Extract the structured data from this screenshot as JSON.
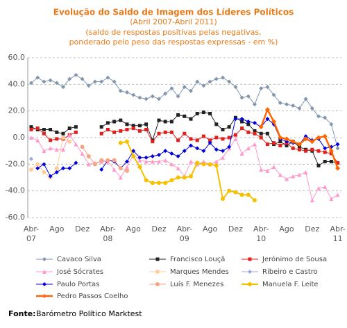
{
  "chart_data": {
    "type": "line",
    "title": "Evolução do Saldo  de Imagem dos Líderes Políticos",
    "subtitle": [
      "(Abril 2007-Abril 2011)",
      "(saldo de respostas positivas pelas negativas,",
      "ponderado pelo peso das respostas expressas - em %)"
    ],
    "categories": [
      "Abr-07",
      null,
      null,
      null,
      "Ago",
      null,
      null,
      null,
      "Dez",
      null,
      null,
      null,
      "Abr-08",
      null,
      null,
      null,
      "Ago",
      null,
      null,
      null,
      "Dez",
      null,
      null,
      null,
      "Abr-09",
      null,
      null,
      null,
      "Ago",
      null,
      null,
      null,
      "Dez",
      null,
      null,
      null,
      "Abr-10",
      null,
      null,
      null,
      "Ago",
      null,
      null,
      null,
      "Dez",
      null,
      null,
      null,
      "Abr-11"
    ],
    "ylim": [
      -60,
      60
    ],
    "yticks": [
      {
        "value": -60,
        "label": "-60.0"
      },
      {
        "value": -40,
        "label": "-40.0"
      },
      {
        "value": -20,
        "label": "-20.0"
      },
      {
        "value": 0,
        "label": "0.0"
      },
      {
        "value": 20,
        "label": "20.0"
      },
      {
        "value": 40,
        "label": "40.0"
      },
      {
        "value": 60,
        "label": "60.0"
      }
    ],
    "grid": true,
    "series": [
      {
        "name": "Cavaco Silva",
        "color": "#8196ad",
        "marker": "diamond",
        "line_width": 1,
        "values": [
          41,
          45,
          42,
          43,
          41,
          38,
          44,
          47,
          44,
          39,
          42,
          42,
          45,
          42,
          35,
          34,
          32,
          30,
          29,
          31,
          29,
          33,
          37,
          31,
          38,
          35,
          42,
          39,
          42,
          44,
          45,
          42,
          38,
          30,
          31,
          25,
          37,
          38,
          32,
          26,
          25,
          24,
          22,
          29,
          22,
          16,
          15,
          10,
          -8
        ]
      },
      {
        "name": "Francisco Louçã",
        "color": "#222222",
        "marker": "square",
        "line_width": 1,
        "values": [
          8,
          6,
          6,
          6,
          4,
          3,
          7,
          8,
          null,
          null,
          null,
          8,
          11,
          12,
          13,
          10,
          9,
          9,
          10,
          -2,
          13,
          12,
          12,
          17,
          16,
          14,
          18,
          19,
          18,
          10,
          6,
          8,
          15,
          12,
          10,
          5,
          3,
          3,
          -5,
          -3,
          -6,
          -3,
          -7,
          -9,
          -10,
          -21,
          -18,
          -18,
          -19
        ]
      },
      {
        "name": "Jerónimo de Sousa",
        "color": "#e0201c",
        "marker": "square",
        "line_width": 1,
        "values": [
          6,
          7,
          3,
          -2,
          -1,
          -1,
          2,
          4,
          null,
          null,
          null,
          3,
          6,
          4,
          5,
          6,
          7,
          5,
          6,
          -3,
          3,
          4,
          4,
          -2,
          3,
          -1,
          -2,
          1,
          -2,
          0,
          -1,
          0,
          2,
          7,
          4,
          3,
          0,
          -5,
          -4,
          -6,
          -4,
          -8,
          -9,
          -10,
          -9,
          -10,
          -11,
          -12,
          -19
        ]
      },
      {
        "name": "José Sócrates",
        "color": "#ff99cc",
        "marker": "triangle",
        "line_width": 1,
        "values": [
          0,
          -2,
          -10,
          -8,
          -9,
          -9,
          2,
          -5,
          -12,
          -20,
          -19,
          -18,
          -18,
          -24,
          -30,
          -22,
          -13,
          -17,
          -18,
          -18,
          -18,
          -17,
          -20,
          -23,
          -29,
          -18,
          -20,
          -18,
          -20,
          -18,
          -15,
          -8,
          -1,
          -12,
          -8,
          -5,
          -24,
          -25,
          -22,
          -28,
          -31,
          -29,
          -28,
          -26,
          -47,
          -38,
          -37,
          -46,
          -43
        ]
      },
      {
        "name": "Marques Mendes",
        "color": "#ffcc99",
        "marker": "circle",
        "line_width": 1,
        "values": [
          -24,
          -20,
          -26,
          -30,
          -23,
          0,
          -3,
          null,
          null,
          null,
          null,
          null,
          null,
          null,
          null,
          null,
          null,
          null,
          null,
          null,
          null,
          null,
          null,
          null,
          null,
          null,
          null,
          null,
          null,
          null,
          null,
          null,
          null,
          null,
          null,
          null,
          null,
          null,
          null,
          null,
          null,
          null,
          null,
          null,
          null,
          null,
          null,
          null,
          null
        ]
      },
      {
        "name": "Ribeiro e Castro",
        "color": "#99a8dd",
        "marker": "diamond",
        "line_width": 1,
        "values": [
          -16,
          null,
          null,
          null,
          null,
          null,
          null,
          null,
          null,
          null,
          null,
          null,
          null,
          null,
          null,
          null,
          null,
          null,
          null,
          null,
          null,
          null,
          null,
          null,
          null,
          null,
          null,
          null,
          null,
          null,
          null,
          null,
          null,
          null,
          null,
          null,
          null,
          null,
          null,
          null,
          null,
          null,
          null,
          null,
          null,
          null,
          null,
          null,
          null
        ]
      },
      {
        "name": "Paulo Portas",
        "color": "#0000dd",
        "marker": "diamond",
        "line_width": 1,
        "values": [
          null,
          -23,
          -20,
          -29,
          -26,
          -23,
          -23,
          -19,
          null,
          null,
          null,
          -24,
          -17,
          -18,
          -23,
          -18,
          -10,
          -15,
          -15,
          -14,
          -13,
          -10,
          -12,
          -14,
          -10,
          -6,
          -8,
          -10,
          -4,
          -9,
          -10,
          -7,
          14,
          14,
          12,
          11,
          8,
          14,
          10,
          -1,
          -3,
          -4,
          -5,
          1,
          -2,
          -1,
          -8,
          -7,
          -5
        ]
      },
      {
        "name": "Luís F. Menezes",
        "color": "#f4a582",
        "marker": "circle",
        "line_width": 1,
        "values": [
          null,
          null,
          null,
          null,
          null,
          null,
          null,
          null,
          -7,
          -14,
          -20,
          -17,
          -17,
          -17,
          -23,
          -25,
          null,
          null,
          null,
          null,
          null,
          null,
          null,
          null,
          null,
          null,
          null,
          null,
          null,
          null,
          null,
          null,
          null,
          null,
          null,
          null,
          null,
          null,
          null,
          null,
          null,
          null,
          null,
          null,
          null,
          null,
          null,
          null,
          null
        ]
      },
      {
        "name": "Manuela F. Leite",
        "color": "#f5c000",
        "marker": "circle",
        "line_width": 2,
        "values": [
          null,
          null,
          null,
          null,
          null,
          null,
          null,
          null,
          null,
          null,
          null,
          null,
          null,
          null,
          -4,
          -3,
          -14,
          -22,
          -32,
          -34,
          -34,
          -34,
          -32,
          -30,
          -30,
          -29,
          -19,
          -20,
          -20,
          -21,
          -46,
          -40,
          -41,
          -43,
          -43,
          -47,
          null,
          null,
          null,
          null,
          null,
          null,
          null,
          null,
          null,
          null,
          null,
          null,
          null
        ]
      },
      {
        "name": "Pedro Passos Coelho",
        "color": "#ff6600",
        "marker": "diamond",
        "line_width": 2.5,
        "values": [
          null,
          null,
          null,
          null,
          null,
          null,
          null,
          null,
          null,
          null,
          null,
          null,
          null,
          null,
          null,
          null,
          null,
          null,
          null,
          null,
          null,
          null,
          null,
          null,
          null,
          null,
          null,
          null,
          null,
          null,
          null,
          null,
          null,
          null,
          null,
          null,
          8,
          21,
          12,
          0,
          -1,
          -3,
          -5,
          -1,
          -3,
          0,
          1,
          -10,
          -23
        ]
      }
    ],
    "source": {
      "label": "Fonte:",
      "text": "Barómetro Político Marktest"
    }
  }
}
